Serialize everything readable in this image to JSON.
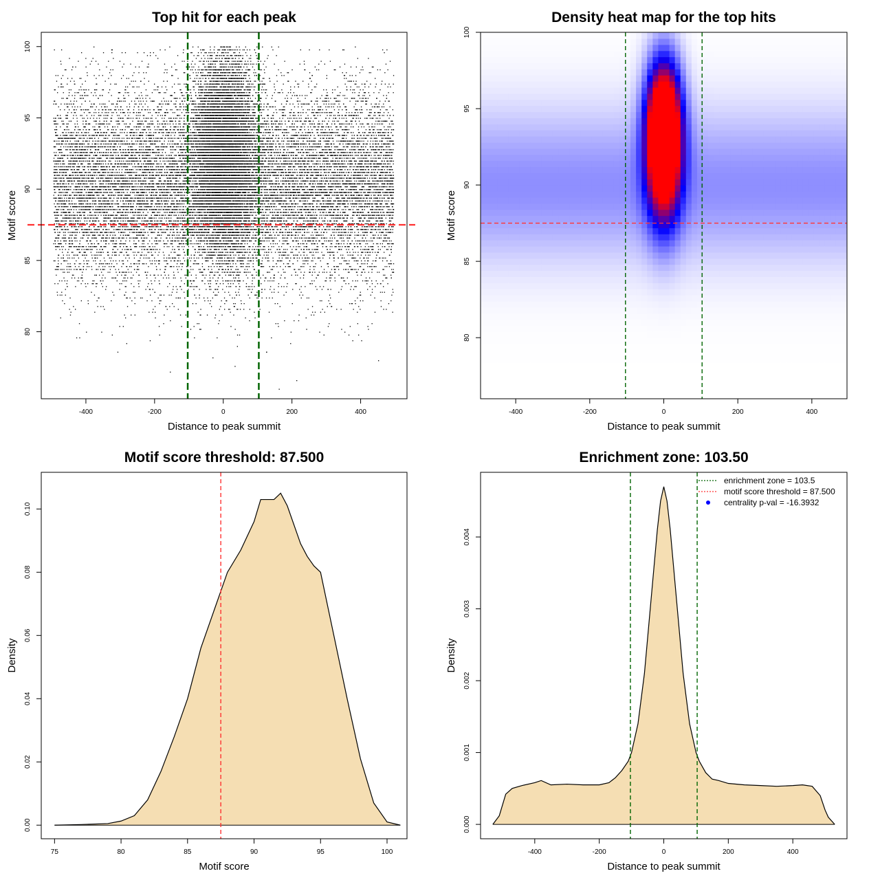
{
  "chart_data": [
    {
      "type": "scatter",
      "title": "Top hit for each peak",
      "xlabel": "Distance to peak summit",
      "ylabel": "Motif score",
      "xlim": [
        -530,
        535
      ],
      "ylim": [
        75.3,
        101.0
      ],
      "xticks": [
        -400,
        -200,
        0,
        200,
        400
      ],
      "yticks": [
        80,
        85,
        90,
        95,
        100
      ],
      "point_distribution": {
        "x_range": [
          -495,
          495
        ],
        "y_range": [
          76,
          100
        ],
        "approx_points": 30000,
        "background_density": "uniform across x, concentrated between 83 and 97",
        "central_cluster": {
          "x_center": 0,
          "x_sd": 45,
          "y_center": 92.5,
          "y_sd": 3.5
        }
      },
      "hlines": [
        {
          "y": 87.5,
          "color": "#ff3030",
          "style": "dashed"
        }
      ],
      "vlines": [
        {
          "x": -103.5,
          "color": "#006400",
          "style": "dashed"
        },
        {
          "x": 103.5,
          "color": "#006400",
          "style": "dashed"
        }
      ],
      "grid": false
    },
    {
      "type": "heatmap",
      "title": "Density heat map for the top hits",
      "xlabel": "Distance to peak summit",
      "ylabel": "Motif score",
      "xlim": [
        -495,
        495
      ],
      "ylim": [
        76.0,
        100.0
      ],
      "xticks": [
        -400,
        -200,
        0,
        200,
        400
      ],
      "yticks": [
        80,
        85,
        90,
        95,
        100
      ],
      "color_scale": [
        "#ffffff",
        "#0000ff",
        "#ff0000"
      ],
      "density": {
        "background_band": {
          "y_center": 90,
          "y_sd": 3.5
        },
        "hotspot": {
          "x_center": 0,
          "x_sd": 32,
          "y_center": 93.5,
          "y_sd": 2.8
        }
      },
      "hlines": [
        {
          "y": 87.5,
          "color": "#ff3030",
          "style": "dashed"
        }
      ],
      "vlines": [
        {
          "x": -103.5,
          "color": "#006400",
          "style": "dashed"
        },
        {
          "x": 103.5,
          "color": "#006400",
          "style": "dashed"
        }
      ],
      "grid": false
    },
    {
      "type": "area",
      "title": "Motif score threshold: 87.500",
      "xlabel": "Motif score",
      "ylabel": "Density",
      "xlim": [
        74.0,
        101.5
      ],
      "ylim": [
        -0.0043,
        0.1116
      ],
      "xticks": [
        75,
        80,
        85,
        90,
        95,
        100
      ],
      "yticks": [
        0.0,
        0.02,
        0.04,
        0.06,
        0.08,
        0.1
      ],
      "ytick_labels": [
        "0.00",
        "0.02",
        "0.04",
        "0.06",
        "0.08",
        "0.10"
      ],
      "fill": "#f5deb3",
      "x": [
        75.0,
        77.0,
        79.0,
        80.0,
        81.0,
        82.0,
        83.0,
        84.0,
        85.0,
        86.0,
        87.0,
        87.5,
        88.0,
        89.0,
        90.0,
        90.5,
        91.0,
        91.5,
        92.0,
        92.5,
        93.0,
        93.5,
        94.0,
        94.5,
        95.0,
        96.0,
        97.0,
        98.0,
        99.0,
        100.0,
        101.0
      ],
      "y": [
        0.0,
        0.0002,
        0.0005,
        0.0013,
        0.003,
        0.008,
        0.017,
        0.028,
        0.04,
        0.056,
        0.068,
        0.074,
        0.08,
        0.087,
        0.096,
        0.103,
        0.103,
        0.103,
        0.105,
        0.101,
        0.095,
        0.089,
        0.085,
        0.082,
        0.08,
        0.06,
        0.04,
        0.021,
        0.007,
        0.001,
        0.0
      ],
      "vlines": [
        {
          "x": 87.5,
          "color": "#ff3030",
          "style": "dashed"
        }
      ],
      "grid": false
    },
    {
      "type": "area",
      "title": "Enrichment zone: 103.50",
      "xlabel": "Distance to peak summit",
      "ylabel": "Density",
      "xlim": [
        -568,
        568
      ],
      "ylim": [
        -0.0002,
        0.0049
      ],
      "xticks": [
        -400,
        -200,
        0,
        200,
        400
      ],
      "yticks": [
        0.0,
        0.001,
        0.002,
        0.003,
        0.004
      ],
      "ytick_labels": [
        "0.000",
        "0.001",
        "0.002",
        "0.003",
        "0.004"
      ],
      "fill": "#f5deb3",
      "x": [
        -530,
        -510,
        -490,
        -470,
        -440,
        -400,
        -380,
        -350,
        -300,
        -250,
        -200,
        -170,
        -150,
        -130,
        -110,
        -100,
        -80,
        -60,
        -40,
        -20,
        -10,
        0,
        10,
        20,
        40,
        60,
        80,
        100,
        110,
        130,
        150,
        170,
        200,
        250,
        300,
        350,
        400,
        430,
        460,
        485,
        500,
        510,
        530
      ],
      "y": [
        0.0,
        0.00012,
        0.00042,
        0.0005,
        0.00054,
        0.00058,
        0.00061,
        0.00055,
        0.00056,
        0.00055,
        0.00055,
        0.00058,
        0.00065,
        0.00075,
        0.00088,
        0.001,
        0.0014,
        0.0021,
        0.0031,
        0.0041,
        0.0045,
        0.0047,
        0.0045,
        0.0041,
        0.0031,
        0.0021,
        0.0014,
        0.001,
        0.00088,
        0.00072,
        0.00063,
        0.00061,
        0.00057,
        0.00055,
        0.00054,
        0.00053,
        0.00054,
        0.00055,
        0.00053,
        0.0004,
        0.0002,
        0.0001,
        0.0
      ],
      "vlines": [
        {
          "x": -103.5,
          "color": "#006400",
          "style": "dashed"
        },
        {
          "x": 103.5,
          "color": "#006400",
          "style": "dashed"
        }
      ],
      "legend": {
        "placement": "top-right",
        "entries": [
          {
            "label": "enrichment zone = 103.5",
            "color": "#006400",
            "style": "dotted-line"
          },
          {
            "label": "motif score threshold = 87.500",
            "color": "#ff3030",
            "style": "dotted-line"
          },
          {
            "label": "centrality p-val = -16.3932",
            "color": "#0000ff",
            "style": "point"
          }
        ]
      },
      "grid": false
    }
  ]
}
